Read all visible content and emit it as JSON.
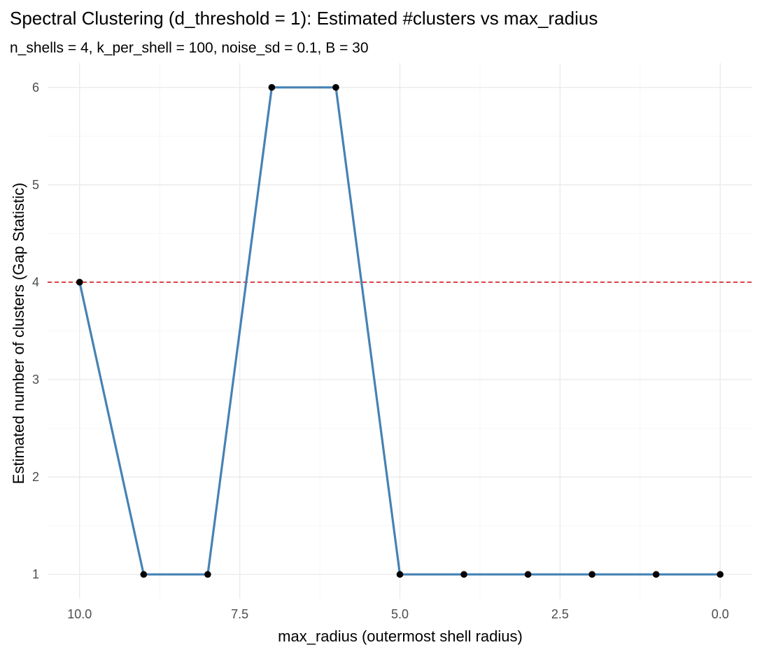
{
  "chart_data": {
    "type": "line",
    "title": "Spectral Clustering (d_threshold = 1): Estimated #clusters vs max_radius",
    "subtitle": "n_shells = 4, k_per_shell = 100, noise_sd = 0.1, B = 30",
    "xlabel": "max_radius (outermost shell radius)",
    "ylabel": "Estimated number of clusters (Gap Statistic)",
    "x_reversed": true,
    "xlim": [
      10.5,
      -0.5
    ],
    "ylim": [
      0.75,
      6.25
    ],
    "x_ticks": [
      10,
      7.5,
      5,
      2.5,
      0
    ],
    "x_tick_labels": [
      "10.0",
      "7.5",
      "5.0",
      "2.5",
      "0.0"
    ],
    "y_ticks": [
      1,
      2,
      3,
      4,
      5,
      6
    ],
    "y_tick_labels": [
      "1",
      "2",
      "3",
      "4",
      "5",
      "6"
    ],
    "grid": true,
    "line_color": "#4682b4",
    "point_color": "#000000",
    "reference_line": {
      "y": 4,
      "color": "#d7191c",
      "style": "dashed"
    },
    "series": [
      {
        "x": [
          10,
          9,
          8,
          7,
          6,
          5,
          4,
          3,
          2,
          1,
          0
        ],
        "values": [
          4,
          1,
          1,
          6,
          6,
          1,
          1,
          1,
          1,
          1,
          1
        ]
      }
    ]
  }
}
